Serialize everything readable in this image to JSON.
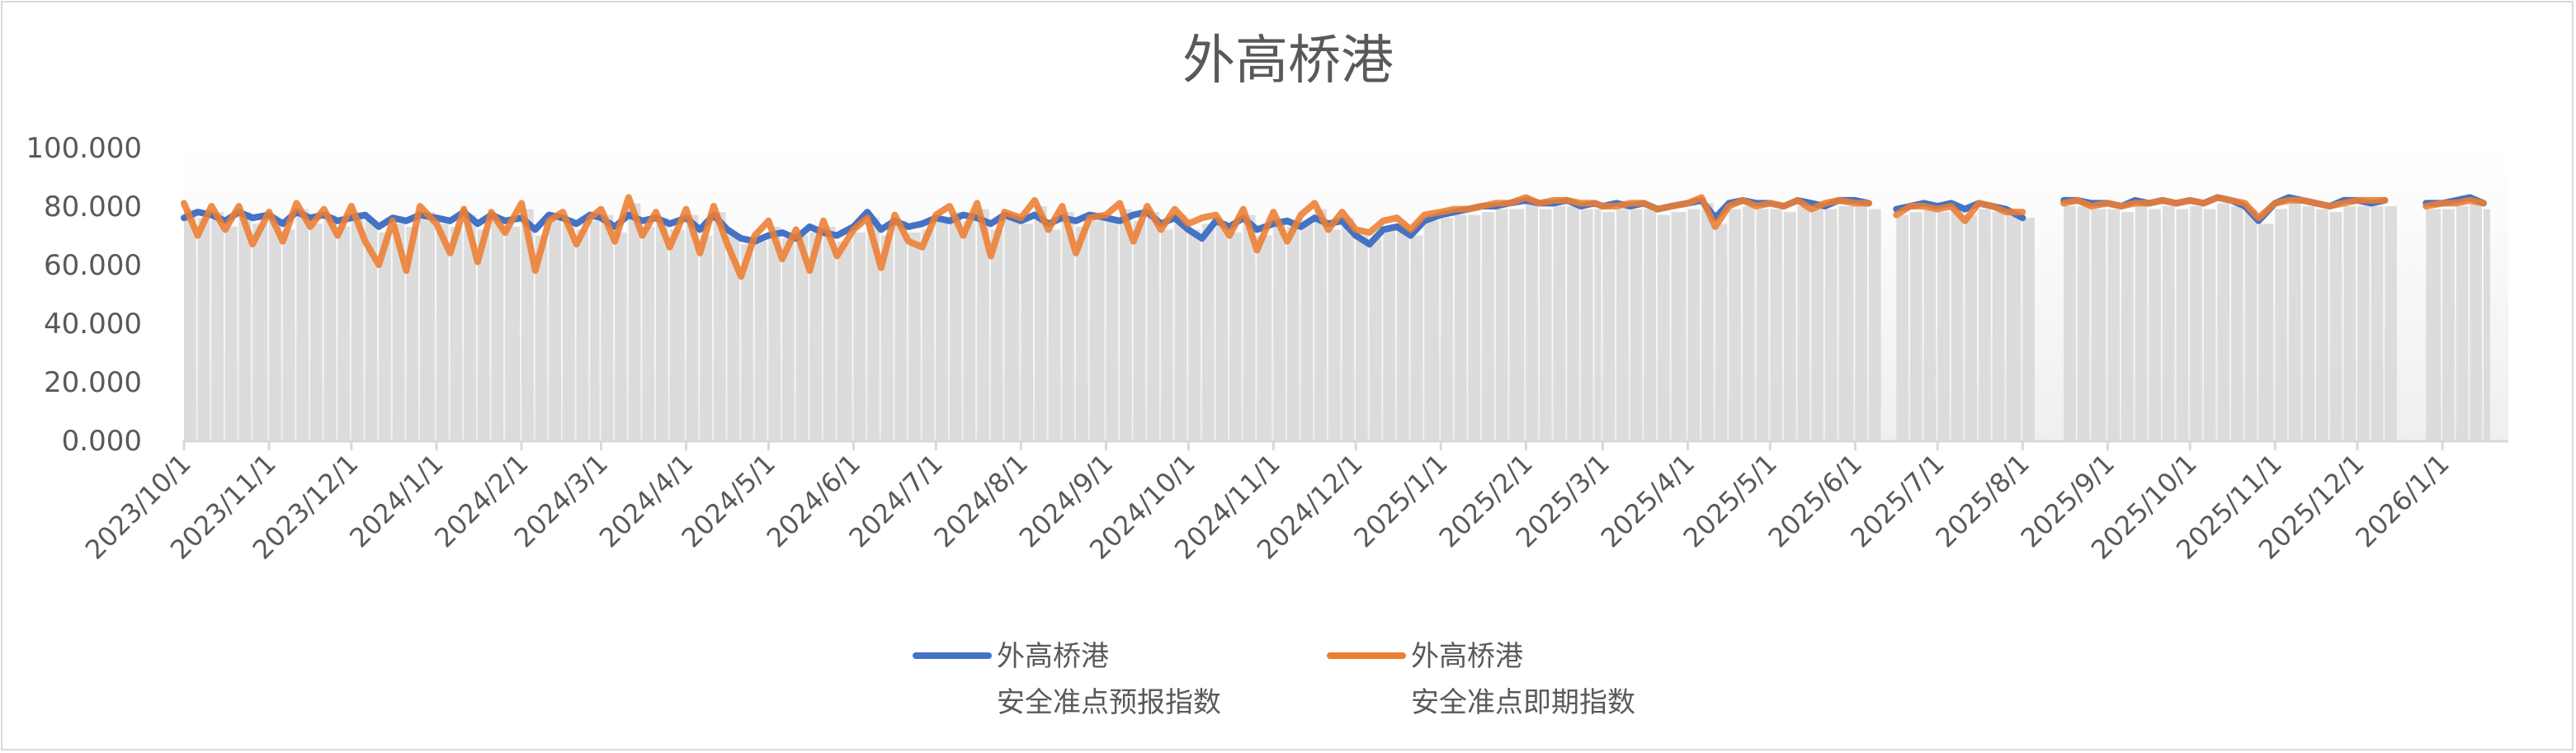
{
  "chart_data": {
    "type": "line",
    "title": "外高桥港",
    "xlabel": "",
    "ylabel": "",
    "ylim": [
      0,
      100
    ],
    "y_ticks": [
      "0.000",
      "20.000",
      "40.000",
      "60.000",
      "80.000",
      "100.000"
    ],
    "x_ticks": [
      "2023/10/1",
      "2023/11/1",
      "2023/12/1",
      "2024/1/1",
      "2024/2/1",
      "2024/3/1",
      "2024/4/1",
      "2024/5/1",
      "2024/6/1",
      "2024/7/1",
      "2024/8/1",
      "2024/9/1",
      "2024/10/1",
      "2024/11/1",
      "2024/12/1",
      "2025/1/1",
      "2025/2/1",
      "2025/3/1",
      "2025/4/1",
      "2025/5/1",
      "2025/6/1",
      "2025/7/1",
      "2025/8/1",
      "2025/9/1",
      "2025/10/1",
      "2025/11/1",
      "2025/12/1",
      "2026/1/1"
    ],
    "grid": false,
    "legend_position": "bottom",
    "background_columns": "gray columns under the forecast series",
    "series": [
      {
        "name": "外高桥港\n安全准点预报指数",
        "name_lines": [
          "外高桥港",
          "安全准点预报指数"
        ],
        "color": "#4472C4"
      },
      {
        "name": "外高桥港\n安全准点即期指数",
        "name_lines": [
          "外高桥港",
          "安全准点即期指数"
        ],
        "color": "#ED7D31"
      }
    ],
    "points": [
      [
        "2023-10-01",
        76,
        81
      ],
      [
        "2023-10-06",
        78,
        70
      ],
      [
        "2023-10-11",
        77,
        80
      ],
      [
        "2023-10-16",
        75,
        72
      ],
      [
        "2023-10-21",
        78,
        80
      ],
      [
        "2023-10-26",
        76,
        67
      ],
      [
        "2023-11-01",
        77,
        78
      ],
      [
        "2023-11-06",
        74,
        68
      ],
      [
        "2023-11-11",
        78,
        81
      ],
      [
        "2023-11-16",
        76,
        73
      ],
      [
        "2023-11-21",
        77,
        79
      ],
      [
        "2023-11-26",
        75,
        70
      ],
      [
        "2023-12-01",
        76,
        80
      ],
      [
        "2023-12-06",
        77,
        68
      ],
      [
        "2023-12-11",
        73,
        60
      ],
      [
        "2023-12-16",
        76,
        75
      ],
      [
        "2023-12-21",
        75,
        58
      ],
      [
        "2023-12-26",
        77,
        80
      ],
      [
        "2024-01-01",
        76,
        74
      ],
      [
        "2024-01-06",
        75,
        64
      ],
      [
        "2024-01-11",
        78,
        79
      ],
      [
        "2024-01-16",
        74,
        61
      ],
      [
        "2024-01-21",
        77,
        78
      ],
      [
        "2024-01-26",
        75,
        71
      ],
      [
        "2024-02-01",
        76,
        81
      ],
      [
        "2024-02-06",
        72,
        58
      ],
      [
        "2024-02-11",
        77,
        75
      ],
      [
        "2024-02-16",
        76,
        78
      ],
      [
        "2024-02-21",
        74,
        67
      ],
      [
        "2024-02-26",
        77,
        76
      ],
      [
        "2024-03-01",
        76,
        79
      ],
      [
        "2024-03-06",
        73,
        68
      ],
      [
        "2024-03-11",
        77,
        83
      ],
      [
        "2024-03-16",
        75,
        70
      ],
      [
        "2024-03-21",
        76,
        78
      ],
      [
        "2024-03-26",
        74,
        66
      ],
      [
        "2024-04-01",
        76,
        79
      ],
      [
        "2024-04-06",
        72,
        64
      ],
      [
        "2024-04-11",
        77,
        80
      ],
      [
        "2024-04-16",
        72,
        67
      ],
      [
        "2024-04-21",
        69,
        56
      ],
      [
        "2024-04-26",
        68,
        70
      ],
      [
        "2024-05-01",
        70,
        75
      ],
      [
        "2024-05-06",
        71,
        62
      ],
      [
        "2024-05-11",
        69,
        72
      ],
      [
        "2024-05-16",
        73,
        58
      ],
      [
        "2024-05-21",
        71,
        75
      ],
      [
        "2024-05-26",
        70,
        63
      ],
      [
        "2024-06-01",
        73,
        72
      ],
      [
        "2024-06-06",
        78,
        76
      ],
      [
        "2024-06-11",
        72,
        59
      ],
      [
        "2024-06-16",
        75,
        77
      ],
      [
        "2024-06-21",
        73,
        68
      ],
      [
        "2024-06-26",
        74,
        66
      ],
      [
        "2024-07-01",
        76,
        77
      ],
      [
        "2024-07-06",
        75,
        80
      ],
      [
        "2024-07-11",
        77,
        70
      ],
      [
        "2024-07-16",
        76,
        81
      ],
      [
        "2024-07-21",
        74,
        63
      ],
      [
        "2024-07-26",
        77,
        78
      ],
      [
        "2024-08-01",
        75,
        76
      ],
      [
        "2024-08-06",
        77,
        82
      ],
      [
        "2024-08-11",
        74,
        72
      ],
      [
        "2024-08-16",
        76,
        80
      ],
      [
        "2024-08-21",
        75,
        64
      ],
      [
        "2024-08-26",
        77,
        76
      ],
      [
        "2024-09-01",
        76,
        77
      ],
      [
        "2024-09-06",
        75,
        81
      ],
      [
        "2024-09-11",
        77,
        68
      ],
      [
        "2024-09-16",
        78,
        80
      ],
      [
        "2024-09-21",
        74,
        72
      ],
      [
        "2024-09-26",
        76,
        79
      ],
      [
        "2024-10-01",
        72,
        74
      ],
      [
        "2024-10-06",
        69,
        76
      ],
      [
        "2024-10-11",
        75,
        77
      ],
      [
        "2024-10-16",
        73,
        70
      ],
      [
        "2024-10-21",
        76,
        79
      ],
      [
        "2024-10-26",
        72,
        65
      ],
      [
        "2024-11-01",
        74,
        78
      ],
      [
        "2024-11-06",
        75,
        68
      ],
      [
        "2024-11-11",
        73,
        77
      ],
      [
        "2024-11-16",
        76,
        81
      ],
      [
        "2024-11-21",
        74,
        72
      ],
      [
        "2024-11-26",
        75,
        78
      ],
      [
        "2024-12-01",
        70,
        72
      ],
      [
        "2024-12-06",
        67,
        71
      ],
      [
        "2024-12-11",
        72,
        75
      ],
      [
        "2024-12-16",
        73,
        76
      ],
      [
        "2024-12-21",
        70,
        72
      ],
      [
        "2024-12-26",
        75,
        77
      ],
      [
        "2025-01-01",
        77,
        78
      ],
      [
        "2025-01-06",
        78,
        79
      ],
      [
        "2025-01-11",
        79,
        79
      ],
      [
        "2025-01-16",
        80,
        80
      ],
      [
        "2025-01-21",
        80,
        81
      ],
      [
        "2025-01-26",
        81,
        81
      ],
      [
        "2025-02-01",
        82,
        83
      ],
      [
        "2025-02-06",
        81,
        81
      ],
      [
        "2025-02-11",
        81,
        82
      ],
      [
        "2025-02-16",
        82,
        82
      ],
      [
        "2025-02-21",
        80,
        81
      ],
      [
        "2025-02-26",
        81,
        81
      ],
      [
        "2025-03-01",
        80,
        80
      ],
      [
        "2025-03-06",
        81,
        80
      ],
      [
        "2025-03-11",
        80,
        81
      ],
      [
        "2025-03-16",
        81,
        81
      ],
      [
        "2025-03-21",
        79,
        79
      ],
      [
        "2025-03-26",
        80,
        80
      ],
      [
        "2025-04-01",
        81,
        81
      ],
      [
        "2025-04-06",
        82,
        83
      ],
      [
        "2025-04-11",
        76,
        73
      ],
      [
        "2025-04-16",
        81,
        80
      ],
      [
        "2025-04-21",
        82,
        82
      ],
      [
        "2025-04-26",
        81,
        80
      ],
      [
        "2025-05-01",
        81,
        81
      ],
      [
        "2025-05-06",
        80,
        80
      ],
      [
        "2025-05-11",
        82,
        82
      ],
      [
        "2025-05-16",
        81,
        79
      ],
      [
        "2025-05-21",
        80,
        81
      ],
      [
        "2025-05-26",
        82,
        82
      ],
      [
        "2025-06-01",
        82,
        81
      ],
      [
        "2025-06-06",
        81,
        81
      ],
      [
        "2025-06-11",
        null,
        null
      ],
      [
        "2025-06-16",
        79,
        77
      ],
      [
        "2025-06-21",
        80,
        80
      ],
      [
        "2025-06-26",
        81,
        80
      ],
      [
        "2025-07-01",
        80,
        79
      ],
      [
        "2025-07-06",
        81,
        80
      ],
      [
        "2025-07-11",
        79,
        75
      ],
      [
        "2025-07-16",
        81,
        81
      ],
      [
        "2025-07-21",
        80,
        80
      ],
      [
        "2025-07-26",
        79,
        78
      ],
      [
        "2025-08-01",
        76,
        78
      ],
      [
        "2025-08-06",
        null,
        null
      ],
      [
        "2025-08-11",
        null,
        null
      ],
      [
        "2025-08-16",
        82,
        81
      ],
      [
        "2025-08-21",
        82,
        82
      ],
      [
        "2025-08-26",
        81,
        80
      ],
      [
        "2025-09-01",
        81,
        81
      ],
      [
        "2025-09-06",
        80,
        80
      ],
      [
        "2025-09-11",
        82,
        81
      ],
      [
        "2025-09-16",
        81,
        81
      ],
      [
        "2025-09-21",
        82,
        82
      ],
      [
        "2025-09-26",
        81,
        81
      ],
      [
        "2025-10-01",
        82,
        82
      ],
      [
        "2025-10-06",
        81,
        81
      ],
      [
        "2025-10-11",
        83,
        83
      ],
      [
        "2025-10-16",
        82,
        82
      ],
      [
        "2025-10-21",
        80,
        81
      ],
      [
        "2025-10-26",
        75,
        76
      ],
      [
        "2025-11-01",
        81,
        81
      ],
      [
        "2025-11-06",
        83,
        82
      ],
      [
        "2025-11-11",
        82,
        82
      ],
      [
        "2025-11-16",
        81,
        81
      ],
      [
        "2025-11-21",
        80,
        80
      ],
      [
        "2025-11-26",
        82,
        81
      ],
      [
        "2025-12-01",
        82,
        82
      ],
      [
        "2025-12-06",
        81,
        82
      ],
      [
        "2025-12-11",
        82,
        82
      ],
      [
        "2025-12-16",
        null,
        null
      ],
      [
        "2025-12-21",
        null,
        null
      ],
      [
        "2025-12-26",
        81,
        80
      ],
      [
        "2026-01-01",
        81,
        81
      ],
      [
        "2026-01-06",
        82,
        81
      ],
      [
        "2026-01-11",
        83,
        82
      ],
      [
        "2026-01-16",
        81,
        81
      ]
    ]
  }
}
